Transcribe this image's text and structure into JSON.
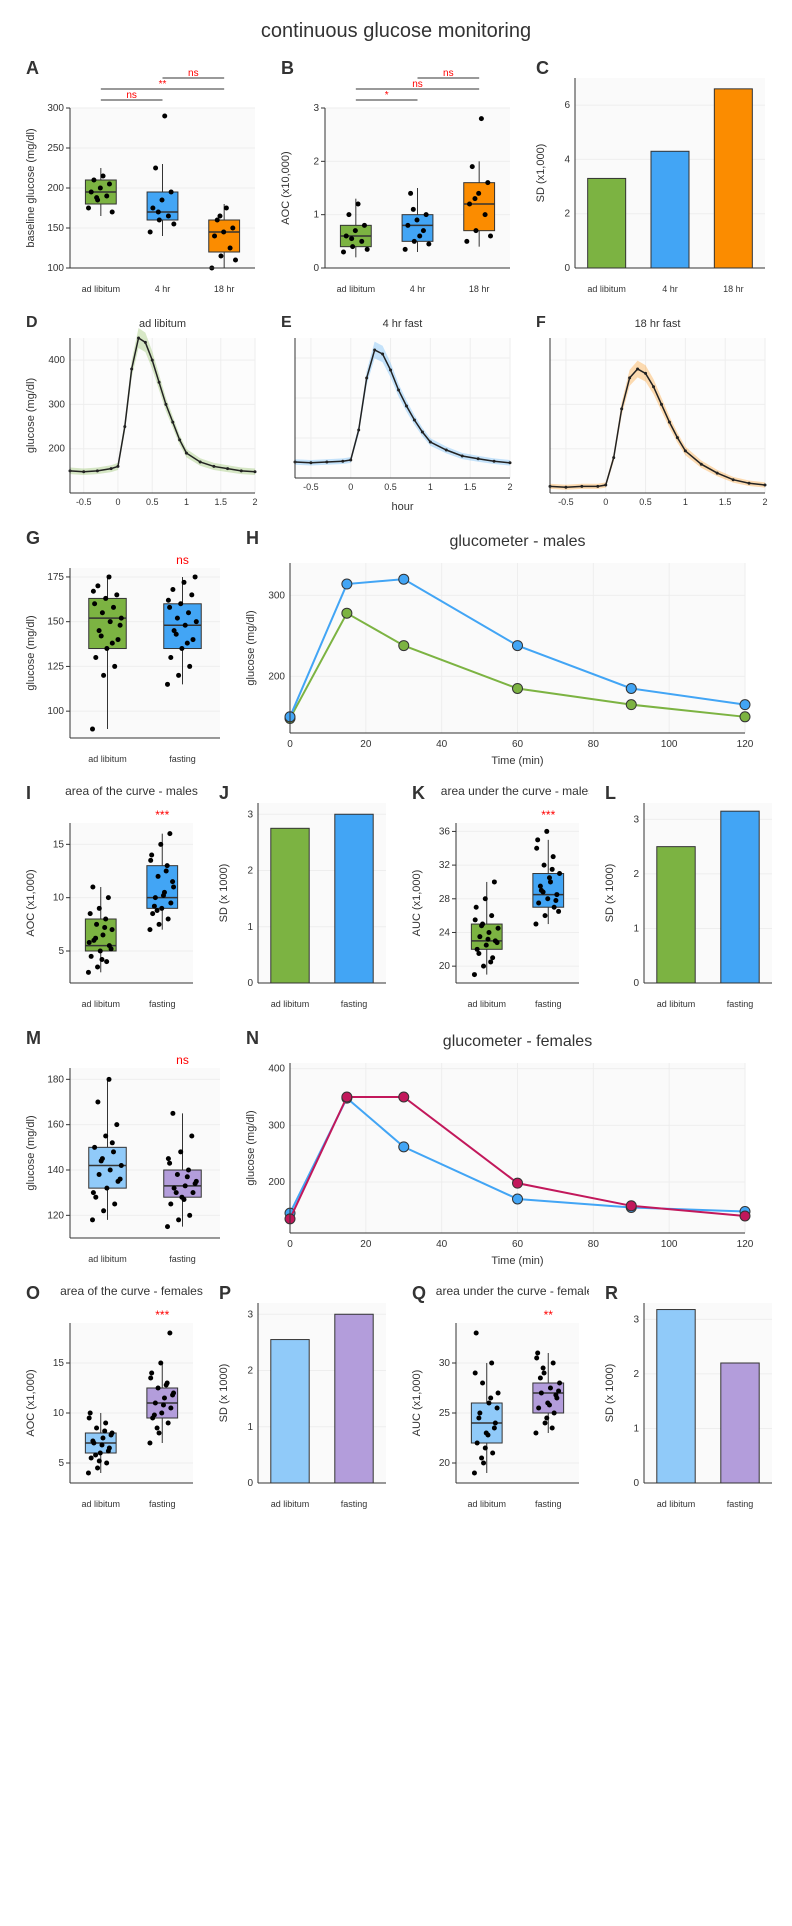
{
  "main_title": "continuous glucose monitoring",
  "colors": {
    "green": "#7cb342",
    "blue": "#42a5f5",
    "orange": "#fb8c00",
    "lightblue": "#90caf9",
    "purple": "#b39ddb",
    "magenta": "#c2185b",
    "grid": "#eeeeee",
    "axis": "#333333",
    "sig": "#ff0000",
    "black": "#000000"
  },
  "A": {
    "label": "A",
    "ylabel": "baseline glucose (mg/dl)",
    "ylim": [
      100,
      300
    ],
    "yticks": [
      100,
      150,
      200,
      250,
      300
    ],
    "categories": [
      "ad libitum",
      "4 hr",
      "18 hr"
    ],
    "boxes": [
      {
        "min": 165,
        "q1": 180,
        "med": 195,
        "q3": 210,
        "max": 225,
        "color": "#7cb342",
        "points": [
          175,
          185,
          190,
          195,
          200,
          205,
          210,
          215,
          170,
          188
        ]
      },
      {
        "min": 140,
        "q1": 160,
        "med": 170,
        "q3": 195,
        "max": 230,
        "color": "#42a5f5",
        "points": [
          145,
          160,
          165,
          175,
          185,
          195,
          225,
          290,
          155,
          170
        ]
      },
      {
        "min": 100,
        "q1": 120,
        "med": 145,
        "q3": 160,
        "max": 180,
        "color": "#fb8c00",
        "points": [
          100,
          115,
          125,
          140,
          145,
          150,
          160,
          175,
          110,
          165
        ]
      }
    ],
    "sigs": [
      [
        "ns",
        0,
        1
      ],
      [
        "**",
        0,
        2
      ],
      [
        "ns",
        1,
        2
      ]
    ]
  },
  "B": {
    "label": "B",
    "ylabel": "AOC (x10,000)",
    "ylim": [
      0,
      3
    ],
    "yticks": [
      0,
      1,
      2,
      3
    ],
    "categories": [
      "ad libitum",
      "4 hr",
      "18 hr"
    ],
    "boxes": [
      {
        "min": 0.2,
        "q1": 0.4,
        "med": 0.6,
        "q3": 0.8,
        "max": 1.3,
        "color": "#7cb342",
        "points": [
          0.3,
          0.4,
          0.5,
          0.6,
          0.7,
          0.8,
          1.0,
          1.2,
          0.35,
          0.55
        ]
      },
      {
        "min": 0.3,
        "q1": 0.5,
        "med": 0.8,
        "q3": 1.0,
        "max": 1.5,
        "color": "#42a5f5",
        "points": [
          0.35,
          0.5,
          0.7,
          0.8,
          0.9,
          1.0,
          1.4,
          0.6,
          0.45,
          1.1
        ]
      },
      {
        "min": 0.4,
        "q1": 0.7,
        "med": 1.2,
        "q3": 1.6,
        "max": 2.0,
        "color": "#fb8c00",
        "points": [
          0.5,
          0.7,
          1.0,
          1.2,
          1.4,
          1.6,
          1.9,
          2.8,
          0.6,
          1.3
        ]
      }
    ],
    "sigs": [
      [
        "*",
        0,
        1
      ],
      [
        "ns",
        0,
        2
      ],
      [
        "ns",
        1,
        2
      ]
    ]
  },
  "C": {
    "label": "C",
    "ylabel": "SD (x1,000)",
    "ylim": [
      0,
      7
    ],
    "yticks": [
      0,
      2,
      4,
      6
    ],
    "categories": [
      "ad libitum",
      "4 hr",
      "18 hr"
    ],
    "bars": [
      {
        "val": 3.3,
        "color": "#7cb342"
      },
      {
        "val": 4.3,
        "color": "#42a5f5"
      },
      {
        "val": 6.6,
        "color": "#fb8c00"
      }
    ]
  },
  "curves": {
    "xlabel": "hour",
    "ylabel": "glucose (mg/dl)",
    "xlim": [
      -0.7,
      2.0
    ],
    "ylim": [
      100,
      450
    ],
    "xticks": [
      -0.5,
      0,
      0.5,
      1.0,
      1.5,
      2.0
    ],
    "yticks": [
      200,
      300,
      400
    ],
    "panels": [
      {
        "label": "D",
        "title": "ad libitum",
        "color": "#7cb342",
        "data": [
          [
            -0.7,
            150
          ],
          [
            -0.5,
            148
          ],
          [
            -0.3,
            150
          ],
          [
            -0.1,
            155
          ],
          [
            0,
            160
          ],
          [
            0.1,
            250
          ],
          [
            0.2,
            380
          ],
          [
            0.3,
            450
          ],
          [
            0.4,
            440
          ],
          [
            0.5,
            400
          ],
          [
            0.6,
            350
          ],
          [
            0.7,
            300
          ],
          [
            0.8,
            260
          ],
          [
            0.9,
            220
          ],
          [
            1.0,
            190
          ],
          [
            1.2,
            170
          ],
          [
            1.4,
            160
          ],
          [
            1.6,
            155
          ],
          [
            1.8,
            150
          ],
          [
            2.0,
            148
          ]
        ]
      },
      {
        "label": "E",
        "title": "4 hr fast",
        "color": "#42a5f5",
        "data": [
          [
            -0.7,
            140
          ],
          [
            -0.5,
            138
          ],
          [
            -0.3,
            140
          ],
          [
            -0.1,
            142
          ],
          [
            0,
            145
          ],
          [
            0.1,
            220
          ],
          [
            0.2,
            350
          ],
          [
            0.3,
            420
          ],
          [
            0.4,
            410
          ],
          [
            0.5,
            370
          ],
          [
            0.6,
            320
          ],
          [
            0.7,
            280
          ],
          [
            0.8,
            245
          ],
          [
            0.9,
            215
          ],
          [
            1.0,
            190
          ],
          [
            1.2,
            170
          ],
          [
            1.4,
            155
          ],
          [
            1.6,
            148
          ],
          [
            1.8,
            142
          ],
          [
            2.0,
            138
          ]
        ]
      },
      {
        "label": "F",
        "title": "18 hr fast",
        "color": "#fb8c00",
        "data": [
          [
            -0.7,
            115
          ],
          [
            -0.5,
            113
          ],
          [
            -0.3,
            115
          ],
          [
            -0.1,
            115
          ],
          [
            0,
            118
          ],
          [
            0.1,
            180
          ],
          [
            0.2,
            290
          ],
          [
            0.3,
            360
          ],
          [
            0.4,
            380
          ],
          [
            0.5,
            370
          ],
          [
            0.6,
            340
          ],
          [
            0.7,
            300
          ],
          [
            0.8,
            260
          ],
          [
            0.9,
            225
          ],
          [
            1.0,
            195
          ],
          [
            1.2,
            165
          ],
          [
            1.4,
            145
          ],
          [
            1.6,
            130
          ],
          [
            1.8,
            122
          ],
          [
            2.0,
            118
          ]
        ]
      }
    ]
  },
  "G": {
    "label": "G",
    "ylabel": "glucose (mg/dl)",
    "ylim": [
      85,
      180
    ],
    "yticks": [
      100,
      125,
      150,
      175
    ],
    "categories": [
      "ad libitum",
      "fasting"
    ],
    "sig": "ns",
    "boxes": [
      {
        "min": 90,
        "q1": 135,
        "med": 152,
        "q3": 163,
        "max": 175,
        "color": "#7cb342",
        "points": [
          90,
          120,
          125,
          130,
          135,
          140,
          145,
          150,
          152,
          155,
          158,
          160,
          163,
          165,
          170,
          175,
          148,
          142,
          138,
          167
        ]
      },
      {
        "min": 115,
        "q1": 135,
        "med": 148,
        "q3": 160,
        "max": 175,
        "color": "#42a5f5",
        "points": [
          115,
          120,
          125,
          130,
          135,
          140,
          145,
          148,
          150,
          152,
          155,
          158,
          160,
          165,
          168,
          172,
          175,
          143,
          138,
          162
        ]
      }
    ]
  },
  "H": {
    "label": "H",
    "title": "glucometer - males",
    "xlabel": "Time (min)",
    "ylabel": "glucose (mg/dl)",
    "xlim": [
      0,
      120
    ],
    "ylim": [
      130,
      340
    ],
    "xticks": [
      0,
      20,
      40,
      60,
      80,
      100,
      120
    ],
    "yticks": [
      200,
      300
    ],
    "series": [
      {
        "color": "#7cb342",
        "data": [
          [
            0,
            148
          ],
          [
            15,
            278
          ],
          [
            30,
            238
          ],
          [
            60,
            185
          ],
          [
            90,
            165
          ],
          [
            120,
            150
          ]
        ]
      },
      {
        "color": "#42a5f5",
        "data": [
          [
            0,
            150
          ],
          [
            15,
            314
          ],
          [
            30,
            320
          ],
          [
            60,
            238
          ],
          [
            90,
            185
          ],
          [
            120,
            165
          ]
        ]
      }
    ]
  },
  "I": {
    "label": "I",
    "title": "area of the curve - males",
    "ylabel": "AOC (x1,000)",
    "ylim": [
      2,
      17
    ],
    "yticks": [
      5,
      10,
      15
    ],
    "categories": [
      "ad libitum",
      "fasting"
    ],
    "sig": "***",
    "boxes": [
      {
        "min": 3,
        "q1": 5,
        "med": 5.5,
        "q3": 8,
        "max": 11,
        "color": "#7cb342",
        "points": [
          3,
          3.5,
          4,
          4.5,
          5,
          5.5,
          6,
          6.5,
          7,
          7.5,
          8,
          8.5,
          9,
          10,
          11,
          4.2,
          5.2,
          6.2,
          7.2,
          5.8
        ]
      },
      {
        "min": 7,
        "q1": 9,
        "med": 10,
        "q3": 13,
        "max": 16,
        "color": "#42a5f5",
        "points": [
          7,
          7.5,
          8,
          8.5,
          9,
          9.5,
          10,
          10.5,
          11,
          12,
          13,
          14,
          15,
          16,
          9.2,
          10.2,
          11.5,
          8.8,
          12.5,
          13.5
        ]
      }
    ]
  },
  "J": {
    "label": "J",
    "ylabel": "SD (x 1000)",
    "ylim": [
      0,
      3.2
    ],
    "yticks": [
      0,
      1,
      2,
      3
    ],
    "categories": [
      "ad libitum",
      "fasting"
    ],
    "bars": [
      {
        "val": 2.75,
        "color": "#7cb342"
      },
      {
        "val": 3.0,
        "color": "#42a5f5"
      }
    ]
  },
  "K": {
    "label": "K",
    "title": "area under the curve - males",
    "ylabel": "AUC (x1,000)",
    "ylim": [
      18,
      37
    ],
    "yticks": [
      20,
      24,
      28,
      32,
      36
    ],
    "categories": [
      "ad libitum",
      "fasting"
    ],
    "sig": "***",
    "boxes": [
      {
        "min": 19,
        "q1": 22,
        "med": 23,
        "q3": 25,
        "max": 30,
        "color": "#7cb342",
        "points": [
          19,
          20,
          21,
          22,
          22.5,
          23,
          23.5,
          24,
          24.5,
          25,
          26,
          27,
          28,
          30,
          21.5,
          23.2,
          22.8,
          24.8,
          20.5,
          25.5
        ]
      },
      {
        "min": 25,
        "q1": 27,
        "med": 28.5,
        "q3": 31,
        "max": 35,
        "color": "#42a5f5",
        "points": [
          25,
          26,
          27,
          27.5,
          28,
          28.5,
          29,
          30,
          31,
          32,
          33,
          35,
          36,
          27.8,
          29.5,
          30.5,
          26.5,
          28.8,
          31.5,
          34
        ]
      }
    ]
  },
  "L": {
    "label": "L",
    "ylabel": "SD (x 1000)",
    "ylim": [
      0,
      3.3
    ],
    "yticks": [
      0,
      1,
      2,
      3
    ],
    "categories": [
      "ad libitum",
      "fasting"
    ],
    "bars": [
      {
        "val": 2.5,
        "color": "#7cb342"
      },
      {
        "val": 3.15,
        "color": "#42a5f5"
      }
    ]
  },
  "M": {
    "label": "M",
    "ylabel": "glucose (mg/dl)",
    "ylim": [
      110,
      185
    ],
    "yticks": [
      120,
      140,
      160,
      180
    ],
    "categories": [
      "ad libitum",
      "fasting"
    ],
    "sig": "ns",
    "boxes": [
      {
        "min": 118,
        "q1": 132,
        "med": 142,
        "q3": 150,
        "max": 180,
        "color": "#90caf9",
        "points": [
          118,
          122,
          125,
          128,
          132,
          135,
          138,
          140,
          142,
          145,
          148,
          150,
          155,
          160,
          170,
          180,
          136,
          144,
          152,
          130
        ]
      },
      {
        "min": 115,
        "q1": 128,
        "med": 133,
        "q3": 140,
        "max": 165,
        "color": "#b39ddb",
        "points": [
          115,
          118,
          120,
          125,
          128,
          130,
          132,
          133,
          135,
          138,
          140,
          143,
          148,
          155,
          165,
          127,
          134,
          130,
          137,
          145
        ]
      }
    ]
  },
  "N": {
    "label": "N",
    "title": "glucometer - females",
    "xlabel": "Time (min)",
    "ylabel": "glucose (mg/dl)",
    "xlim": [
      0,
      120
    ],
    "ylim": [
      110,
      410
    ],
    "xticks": [
      0,
      20,
      40,
      60,
      80,
      100,
      120
    ],
    "yticks": [
      200,
      300,
      400
    ],
    "series": [
      {
        "color": "#42a5f5",
        "data": [
          [
            0,
            145
          ],
          [
            15,
            348
          ],
          [
            30,
            262
          ],
          [
            60,
            170
          ],
          [
            90,
            155
          ],
          [
            120,
            148
          ]
        ]
      },
      {
        "color": "#c2185b",
        "data": [
          [
            0,
            135
          ],
          [
            15,
            350
          ],
          [
            30,
            350
          ],
          [
            60,
            198
          ],
          [
            90,
            158
          ],
          [
            120,
            140
          ]
        ]
      }
    ]
  },
  "O": {
    "label": "O",
    "title": "area of the curve - females",
    "ylabel": "AOC (x1,000)",
    "ylim": [
      3,
      19
    ],
    "yticks": [
      5,
      10,
      15
    ],
    "categories": [
      "ad libitum",
      "fasting"
    ],
    "sig": "***",
    "boxes": [
      {
        "min": 4,
        "q1": 6,
        "med": 7,
        "q3": 8,
        "max": 10,
        "color": "#90caf9",
        "points": [
          4,
          4.5,
          5,
          5.5,
          6,
          6.5,
          7,
          7.5,
          8,
          8.5,
          9,
          10,
          5.2,
          6.2,
          7.2,
          6.8,
          7.8,
          5.8,
          8.2,
          9.5
        ]
      },
      {
        "min": 7,
        "q1": 9.5,
        "med": 11,
        "q3": 12.5,
        "max": 15,
        "color": "#b39ddb",
        "points": [
          7,
          8,
          9,
          9.5,
          10,
          10.5,
          11,
          11.5,
          12,
          12.5,
          13,
          14,
          15,
          18,
          9.8,
          10.8,
          11.8,
          8.5,
          12.8,
          13.5
        ]
      }
    ]
  },
  "P": {
    "label": "P",
    "ylabel": "SD (x 1000)",
    "ylim": [
      0,
      3.2
    ],
    "yticks": [
      0,
      1,
      2,
      3
    ],
    "categories": [
      "ad libitum",
      "fasting"
    ],
    "bars": [
      {
        "val": 2.55,
        "color": "#90caf9"
      },
      {
        "val": 3.0,
        "color": "#b39ddb"
      }
    ]
  },
  "Q": {
    "label": "Q",
    "title": "area under the curve - females",
    "ylabel": "AUC (x1,000)",
    "ylim": [
      18,
      34
    ],
    "yticks": [
      20,
      25,
      30
    ],
    "categories": [
      "ad libitum",
      "fasting"
    ],
    "sig": "**",
    "boxes": [
      {
        "min": 19,
        "q1": 22,
        "med": 24,
        "q3": 26,
        "max": 30,
        "color": "#90caf9",
        "points": [
          19,
          20,
          21,
          22,
          23,
          24,
          25,
          26,
          27,
          28,
          30,
          33,
          21.5,
          23.5,
          24.5,
          22.8,
          25.5,
          20.5,
          26.5,
          29
        ]
      },
      {
        "min": 23,
        "q1": 25,
        "med": 27,
        "q3": 28,
        "max": 31,
        "color": "#b39ddb",
        "points": [
          23,
          24,
          25,
          25.5,
          26,
          26.5,
          27,
          27.5,
          28,
          29,
          30,
          31,
          24.5,
          26.8,
          28.5,
          25.8,
          27.2,
          29.5,
          23.5,
          30.5
        ]
      }
    ]
  },
  "R": {
    "label": "R",
    "ylabel": "SD (x 1000)",
    "ylim": [
      0,
      3.3
    ],
    "yticks": [
      0,
      1,
      2,
      3
    ],
    "categories": [
      "ad libitum",
      "fasting"
    ],
    "bars": [
      {
        "val": 3.18,
        "color": "#90caf9"
      },
      {
        "val": 2.2,
        "color": "#b39ddb"
      }
    ]
  }
}
